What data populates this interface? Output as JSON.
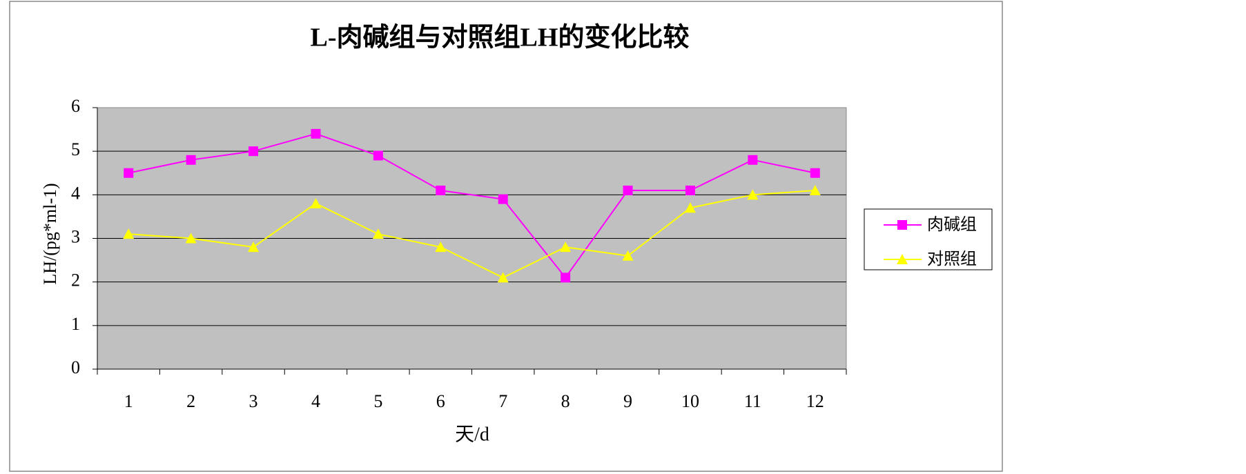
{
  "chart_data": {
    "type": "line",
    "title": "L-肉碱组与对照组LH的变化比较",
    "x_label": "天/d",
    "y_label": "LH/(pg*ml-1)",
    "categories": [
      "1",
      "2",
      "3",
      "4",
      "5",
      "6",
      "7",
      "8",
      "9",
      "10",
      "11",
      "12"
    ],
    "series": [
      {
        "name": "肉碱组",
        "color": "#ff00ff",
        "marker": "square",
        "values": [
          4.5,
          4.8,
          5.0,
          5.4,
          4.9,
          4.1,
          3.9,
          2.1,
          4.1,
          4.1,
          4.8,
          4.5
        ]
      },
      {
        "name": "对照组",
        "color": "#ffff00",
        "marker": "triangle",
        "values": [
          3.1,
          3.0,
          2.8,
          3.8,
          3.1,
          2.8,
          2.1,
          2.8,
          2.6,
          3.7,
          4.0,
          4.1
        ]
      }
    ],
    "ylim": [
      0,
      6
    ],
    "yticks": [
      0,
      1,
      2,
      3,
      4,
      5,
      6
    ],
    "grid": true,
    "legend": "right"
  }
}
